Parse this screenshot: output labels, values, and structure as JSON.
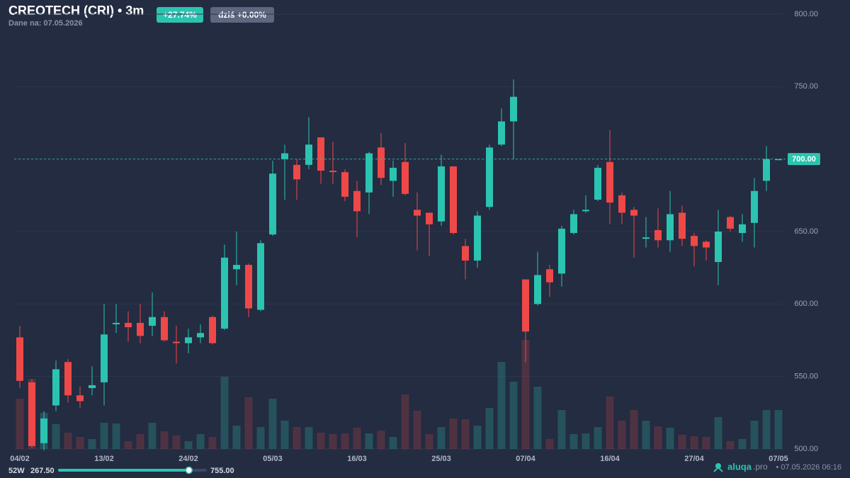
{
  "chart_data": {
    "type": "candlestick",
    "title": "CREOTECH (CRI) • 3m",
    "subtitle": "Dane na: 07.05.2026",
    "badges": [
      "+27.74%",
      "dziś +0.00%"
    ],
    "categories": [
      "04/02",
      null,
      null,
      null,
      null,
      null,
      null,
      "13/02",
      null,
      null,
      null,
      null,
      null,
      null,
      "24/02",
      null,
      null,
      null,
      null,
      null,
      null,
      "05/03",
      null,
      null,
      null,
      null,
      null,
      null,
      "16/03",
      null,
      null,
      null,
      null,
      null,
      null,
      "25/03",
      null,
      null,
      null,
      null,
      null,
      null,
      "07/04",
      null,
      null,
      null,
      null,
      null,
      null,
      "16/04",
      null,
      null,
      null,
      null,
      null,
      null,
      "27/04",
      null,
      null,
      null,
      null,
      null,
      null,
      "07/05"
    ],
    "open": [
      577,
      546,
      504,
      530,
      560,
      537,
      542,
      546,
      586,
      587,
      587,
      585,
      591,
      574,
      573,
      577,
      591,
      583,
      624,
      627,
      596,
      648,
      700,
      696,
      696,
      715,
      692,
      691,
      678,
      677,
      708,
      685,
      698,
      665,
      663,
      657,
      695,
      640,
      630,
      667,
      710,
      726,
      617,
      600,
      624,
      621,
      649,
      664,
      672,
      698,
      675,
      665,
      645,
      651,
      644,
      663,
      647,
      643,
      629,
      660,
      649,
      656,
      685,
      700
    ],
    "high": [
      585,
      548,
      526,
      561,
      562,
      543,
      557,
      600,
      600,
      595,
      600,
      608,
      595,
      585,
      583,
      586,
      592,
      641,
      650,
      628,
      644,
      699,
      710,
      700,
      729,
      715,
      712,
      693,
      685,
      705,
      718,
      699,
      711,
      677,
      663,
      703,
      695,
      645,
      664,
      710,
      735,
      755,
      617,
      636,
      627,
      654,
      665,
      675,
      696,
      720,
      677,
      667,
      660,
      666,
      678,
      668,
      649,
      644,
      665,
      661,
      662,
      687,
      709,
      700
    ],
    "low": [
      542,
      501,
      499,
      526,
      532,
      528,
      537,
      530,
      580,
      574,
      573,
      578,
      574,
      559,
      566,
      573,
      572,
      582,
      613,
      591,
      595,
      647,
      672,
      672,
      693,
      683,
      683,
      671,
      646,
      662,
      682,
      674,
      675,
      637,
      633,
      654,
      648,
      617,
      625,
      665,
      709,
      700,
      560,
      599,
      605,
      612,
      648,
      663,
      671,
      655,
      655,
      632,
      639,
      639,
      636,
      640,
      626,
      630,
      613,
      650,
      643,
      639,
      678,
      700
    ],
    "close": [
      547,
      502,
      521,
      555,
      537,
      533,
      544,
      579,
      587,
      584,
      578,
      591,
      575,
      573,
      577,
      580,
      573,
      632,
      627,
      597,
      642,
      690,
      704,
      686,
      710,
      692,
      691,
      674,
      664,
      704,
      687,
      694,
      676,
      661,
      655,
      695,
      649,
      630,
      661,
      708,
      726,
      743,
      581,
      620,
      615,
      652,
      662,
      665,
      694,
      670,
      663,
      661,
      646,
      644,
      662,
      645,
      640,
      639,
      650,
      652,
      655,
      678,
      700,
      700
    ],
    "volume": [
      71,
      99,
      51,
      35,
      23,
      17,
      14,
      37,
      36,
      11,
      21,
      37,
      25,
      19,
      11,
      21,
      17,
      102,
      33,
      73,
      31,
      71,
      40,
      31,
      31,
      23,
      21,
      22,
      30,
      22,
      26,
      17,
      77,
      54,
      21,
      31,
      43,
      42,
      33,
      58,
      123,
      95,
      154,
      88,
      14,
      55,
      21,
      22,
      31,
      74,
      40,
      55,
      40,
      32,
      30,
      20,
      18,
      17,
      45,
      11,
      14,
      40,
      55,
      55
    ],
    "volume_lim": [
      0,
      614
    ],
    "up_color": "#2bc4b1",
    "down_color": "#ef4848",
    "ylim": [
      500,
      800
    ],
    "yticks": [
      {
        "value": 500,
        "label": "500.00"
      },
      {
        "value": 550,
        "label": "550.00"
      },
      {
        "value": 600,
        "label": "600.00"
      },
      {
        "value": 650,
        "label": "650.00"
      },
      {
        "value": 700,
        "label": "700.00"
      },
      {
        "value": 750,
        "label": "750.00"
      },
      {
        "value": 800,
        "label": "800.00"
      }
    ],
    "grid": true,
    "last_price": {
      "value": 700,
      "label": "700.00"
    },
    "range_52w": {
      "label": "52W",
      "low": {
        "value": 267.5,
        "label": "267.50"
      },
      "high": {
        "value": 755,
        "label": "755.00"
      }
    },
    "footer": {
      "brand": "aluqa",
      "domain": ".pro",
      "timestamp": "• 07.05.2026 06:16"
    }
  }
}
